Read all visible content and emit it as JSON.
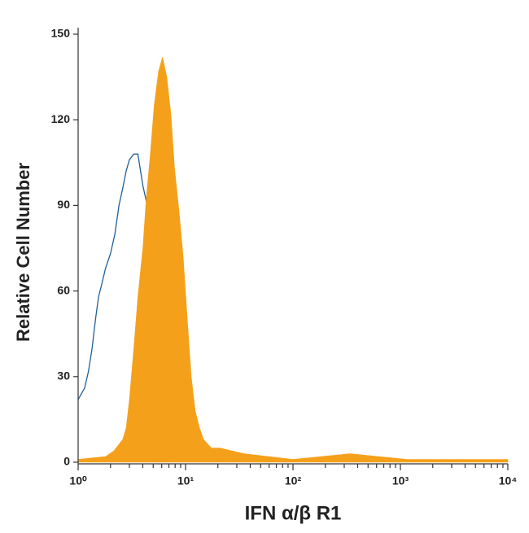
{
  "chart_data": {
    "type": "histogram-overlay",
    "ylabel": "Relative Cell Number",
    "xlabel": "IFN α/β R1",
    "xscale": "log",
    "xlim": [
      1,
      10000
    ],
    "xticks": [
      {
        "value": 1,
        "label": "10⁰"
      },
      {
        "value": 10,
        "label": "10¹"
      },
      {
        "value": 100,
        "label": "10²"
      },
      {
        "value": 1000,
        "label": "10³"
      },
      {
        "value": 10000,
        "label": "10⁴"
      }
    ],
    "ylim": [
      0,
      150
    ],
    "yticks": [
      0,
      30,
      60,
      90,
      120,
      150
    ],
    "series": [
      {
        "color": "#f5a01a",
        "fill": true,
        "x": [
          1,
          1.8,
          2.15,
          2.6,
          2.8,
          3.0,
          3.3,
          3.6,
          4.0,
          4.3,
          4.7,
          5.1,
          5.6,
          6.1,
          6.7,
          7.3,
          7.9,
          8.7,
          9.5,
          10.4,
          11.3,
          12.3,
          13.5,
          14.7,
          17.4,
          20.9,
          27,
          35,
          59,
          100,
          340,
          1150,
          10000
        ],
        "values": [
          1,
          2,
          4,
          8,
          12,
          22,
          40,
          58,
          75,
          92,
          108,
          125,
          137,
          142,
          135,
          122,
          103,
          88,
          72,
          50,
          30,
          18,
          12,
          8,
          5,
          5,
          4,
          3,
          2,
          1,
          3,
          1,
          1
        ]
      },
      {
        "color": "#1f5f99",
        "fill": false,
        "x": [
          1,
          1.15,
          1.25,
          1.35,
          1.45,
          1.55,
          1.65,
          1.8,
          2.0,
          2.2,
          2.4,
          2.6,
          2.8,
          3.0,
          3.3,
          3.6,
          4.0,
          4.4
        ],
        "values": [
          22,
          26,
          32,
          40,
          50,
          58,
          62,
          68,
          73,
          80,
          90,
          96,
          102,
          106,
          108,
          108,
          97,
          90
        ]
      }
    ]
  }
}
